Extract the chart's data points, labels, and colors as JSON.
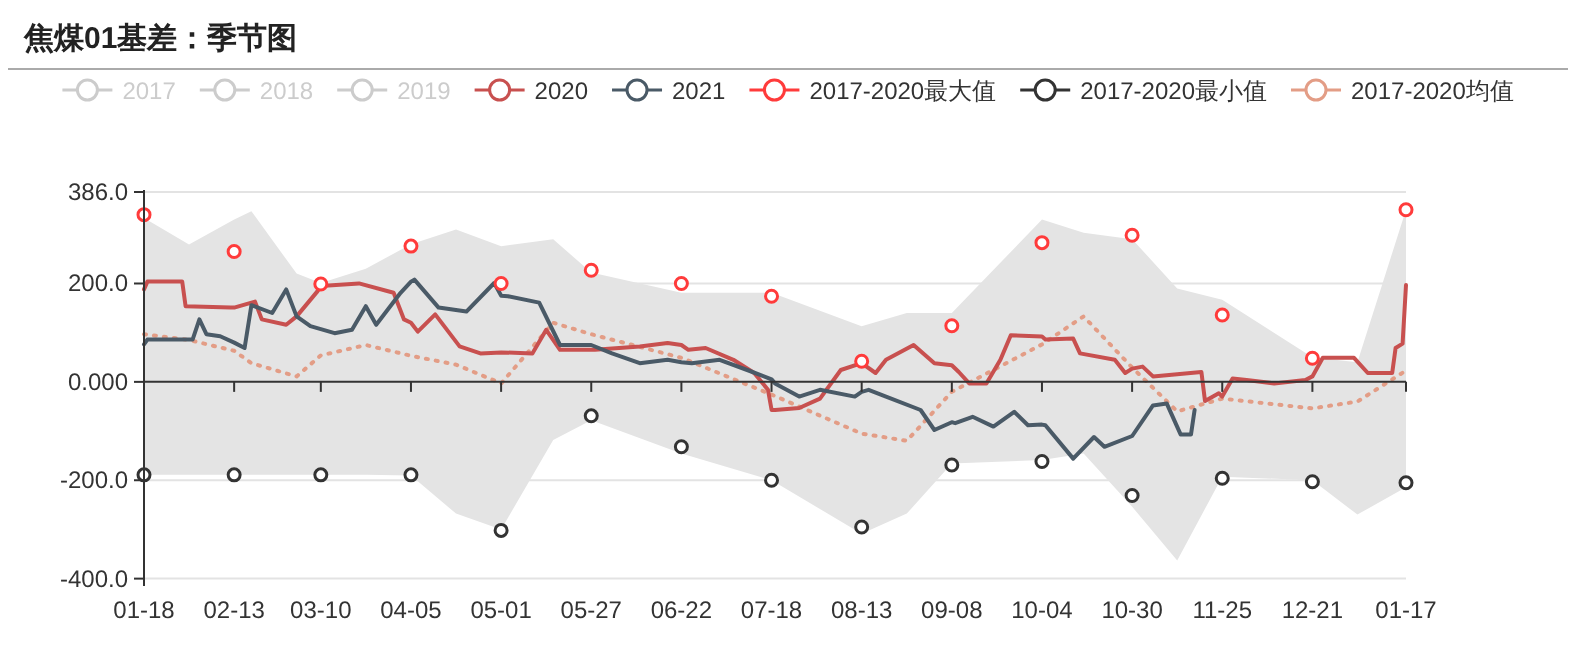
{
  "chart_data": {
    "type": "line",
    "title": "焦煤01基差：季节图",
    "grid": "y",
    "legend": "top",
    "xlim": [
      "2021-01-18",
      "2022-01-17"
    ],
    "xticks": [
      {
        "value": "2021-01-18",
        "label": "01-18"
      },
      {
        "value": "2021-02-13",
        "label": "02-13"
      },
      {
        "value": "2021-03-10",
        "label": "03-10"
      },
      {
        "value": "2021-04-05",
        "label": "04-05"
      },
      {
        "value": "2021-05-01",
        "label": "05-01"
      },
      {
        "value": "2021-05-27",
        "label": "05-27"
      },
      {
        "value": "2021-06-22",
        "label": "06-22"
      },
      {
        "value": "2021-07-18",
        "label": "07-18"
      },
      {
        "value": "2021-08-13",
        "label": "08-13"
      },
      {
        "value": "2021-09-08",
        "label": "09-08"
      },
      {
        "value": "2021-10-04",
        "label": "10-04"
      },
      {
        "value": "2021-10-30",
        "label": "10-30"
      },
      {
        "value": "2021-11-25",
        "label": "11-25"
      },
      {
        "value": "2021-12-21",
        "label": "12-21"
      },
      {
        "value": "2022-01-17",
        "label": "01-17"
      }
    ],
    "ylim": [
      -415,
      386
    ],
    "yticks": [
      {
        "value": 386,
        "label": "386.0"
      },
      {
        "value": 200,
        "label": "200.0"
      },
      {
        "value": 0,
        "label": "0.000"
      },
      {
        "value": -200,
        "label": "-200.0"
      },
      {
        "value": -400,
        "label": "-400.0"
      }
    ],
    "series": [
      {
        "name": "2017",
        "color": "#cccccc"
      },
      {
        "name": "2018",
        "color": "#cccccc"
      },
      {
        "name": "2019",
        "color": "#cccccc"
      },
      {
        "name": "2020",
        "color": "#c8504f",
        "x": [
          "2021-01-18",
          "2021-01-19",
          "2021-01-29",
          "2021-01-30",
          "2021-02-12",
          "2021-02-13",
          "2021-02-19",
          "2021-02-21",
          "2021-02-28",
          "2021-03-03",
          "2021-03-09",
          "2021-03-10",
          "2021-03-21",
          "2021-03-31",
          "2021-04-03",
          "2021-04-05",
          "2021-04-07",
          "2021-04-12",
          "2021-04-19",
          "2021-04-25",
          "2021-05-01",
          "2021-05-10",
          "2021-05-14",
          "2021-05-18",
          "2021-05-27",
          "2021-05-28",
          "2021-06-10",
          "2021-06-18",
          "2021-06-22",
          "2021-06-24",
          "2021-06-29",
          "2021-07-07",
          "2021-07-13",
          "2021-07-17",
          "2021-07-18",
          "2021-07-19",
          "2021-07-26",
          "2021-08-01",
          "2021-08-07",
          "2021-08-13",
          "2021-08-17",
          "2021-08-20",
          "2021-08-28",
          "2021-09-03",
          "2021-09-08",
          "2021-09-10",
          "2021-09-13",
          "2021-09-18",
          "2021-09-22",
          "2021-09-25",
          "2021-10-04",
          "2021-10-05",
          "2021-10-13",
          "2021-10-15",
          "2021-10-25",
          "2021-10-28",
          "2021-10-30",
          "2021-11-02",
          "2021-11-05",
          "2021-11-19",
          "2021-11-20",
          "2021-11-24",
          "2021-11-25",
          "2021-11-28",
          "2021-12-02",
          "2021-12-10",
          "2021-12-19",
          "2021-12-21",
          "2021-12-24",
          "2022-01-02",
          "2022-01-06",
          "2022-01-13",
          "2022-01-14",
          "2022-01-16",
          "2022-01-17"
        ],
        "values": [
          188,
          204,
          204,
          154,
          151,
          151,
          163,
          127,
          116,
          133,
          184,
          195,
          200,
          181,
          127,
          120,
          102,
          137,
          72,
          58,
          60,
          58,
          106,
          65,
          65,
          65,
          72,
          79,
          75,
          65,
          69,
          45,
          18,
          -16,
          -57,
          -57,
          -53,
          -34,
          24,
          38,
          18,
          45,
          75,
          38,
          34,
          20,
          -3,
          -3,
          45,
          95,
          92,
          86,
          88,
          58,
          45,
          18,
          27,
          31,
          11,
          20,
          -39,
          -23,
          -30,
          7,
          4,
          -3,
          4,
          11,
          49,
          49,
          18,
          18,
          69,
          78,
          197
        ]
      },
      {
        "name": "2021",
        "color": "#4a5a67",
        "x": [
          "2021-01-18",
          "2021-01-19",
          "2021-02-01",
          "2021-02-03",
          "2021-02-05",
          "2021-02-09",
          "2021-02-13",
          "2021-02-16",
          "2021-02-18",
          "2021-02-24",
          "2021-02-28",
          "2021-03-03",
          "2021-03-07",
          "2021-03-10",
          "2021-03-14",
          "2021-03-19",
          "2021-03-23",
          "2021-03-26",
          "2021-04-02",
          "2021-04-05",
          "2021-04-06",
          "2021-04-13",
          "2021-04-21",
          "2021-04-29",
          "2021-05-01",
          "2021-05-03",
          "2021-05-12",
          "2021-05-18",
          "2021-05-26",
          "2021-05-27",
          "2021-06-02",
          "2021-06-10",
          "2021-06-18",
          "2021-06-22",
          "2021-06-25",
          "2021-07-03",
          "2021-07-11",
          "2021-07-18",
          "2021-07-19",
          "2021-07-26",
          "2021-08-01",
          "2021-08-11",
          "2021-08-13",
          "2021-08-15",
          "2021-08-20",
          "2021-08-30",
          "2021-09-03",
          "2021-09-08",
          "2021-09-09",
          "2021-09-14",
          "2021-09-20",
          "2021-09-26",
          "2021-09-30",
          "2021-10-04",
          "2021-10-05",
          "2021-10-13",
          "2021-10-19",
          "2021-10-22",
          "2021-10-30",
          "2021-11-05",
          "2021-11-09",
          "2021-11-13",
          "2021-11-16",
          "2021-11-17"
        ],
        "values": [
          76,
          86,
          86,
          127,
          97,
          93,
          80,
          69,
          156,
          140,
          188,
          133,
          113,
          107,
          99,
          106,
          154,
          116,
          181,
          204,
          208,
          151,
          143,
          201,
          175,
          174,
          161,
          75,
          75,
          75,
          58,
          38,
          45,
          40,
          38,
          45,
          24,
          5,
          -3,
          -30,
          -16,
          -30,
          -20,
          -16,
          -30,
          -57,
          -98,
          -82,
          -84,
          -71,
          -91,
          -61,
          -88,
          -87,
          -88,
          -156,
          -112,
          -132,
          -110,
          -48,
          -44,
          -107,
          -107,
          -57
        ]
      },
      {
        "name": "2017-2020最大值",
        "type": "scatter",
        "marker": "circle",
        "color": "#ff3b3b",
        "x": [
          "2021-01-18",
          "2021-02-13",
          "2021-03-10",
          "2021-04-05",
          "2021-05-01",
          "2021-05-27",
          "2021-06-22",
          "2021-07-18",
          "2021-08-13",
          "2021-09-08",
          "2021-10-04",
          "2021-10-30",
          "2021-11-25",
          "2021-12-21",
          "2022-01-17"
        ],
        "values": [
          340,
          265,
          199,
          276,
          200,
          227,
          200,
          174,
          42,
          114,
          283,
          298,
          136,
          48,
          350
        ]
      },
      {
        "name": "2017-2020最小值",
        "type": "scatter",
        "marker": "circle",
        "color": "#333333",
        "x": [
          "2021-01-18",
          "2021-02-13",
          "2021-03-10",
          "2021-04-05",
          "2021-05-01",
          "2021-05-27",
          "2021-06-22",
          "2021-07-18",
          "2021-08-13",
          "2021-09-08",
          "2021-10-04",
          "2021-10-30",
          "2021-11-25",
          "2021-12-21",
          "2022-01-17"
        ],
        "values": [
          -189,
          -189,
          -189,
          -189,
          -302,
          -69,
          -132,
          -200,
          -295,
          -169,
          -162,
          -231,
          -196,
          -203,
          -205
        ]
      },
      {
        "name": "2017-2020均值",
        "color": "#e39d86",
        "line_style": "dotted",
        "x": [
          "2021-01-18",
          "2021-01-31",
          "2021-02-13",
          "2021-02-18",
          "2021-03-03",
          "2021-03-10",
          "2021-03-23",
          "2021-04-05",
          "2021-04-18",
          "2021-05-01",
          "2021-05-16",
          "2021-05-27",
          "2021-06-22",
          "2021-07-18",
          "2021-08-13",
          "2021-08-26",
          "2021-09-08",
          "2021-10-04",
          "2021-10-16",
          "2021-10-30",
          "2021-11-12",
          "2021-11-25",
          "2021-12-21",
          "2022-01-03",
          "2022-01-17"
        ],
        "values": [
          97,
          85,
          63,
          38,
          11,
          54,
          75,
          53,
          35,
          -3,
          120,
          97,
          49,
          -26,
          -105,
          -120,
          -20,
          76,
          133,
          29,
          -60,
          -34,
          -54,
          -40,
          23
        ],
        "lower": [
          -189,
          -189,
          -189,
          -189,
          -189,
          -189,
          -189,
          -190,
          -268,
          -300,
          -118,
          -78,
          -146,
          -200,
          -309,
          -268,
          -166,
          -159,
          -146,
          -254,
          -363,
          -193,
          -200,
          -270,
          -214
        ],
        "upper": [
          333,
          279,
          330,
          347,
          220,
          201,
          230,
          280,
          310,
          276,
          290,
          222,
          181,
          181,
          113,
          140,
          140,
          330,
          303,
          290,
          190,
          167,
          50,
          40,
          350
        ]
      }
    ]
  }
}
